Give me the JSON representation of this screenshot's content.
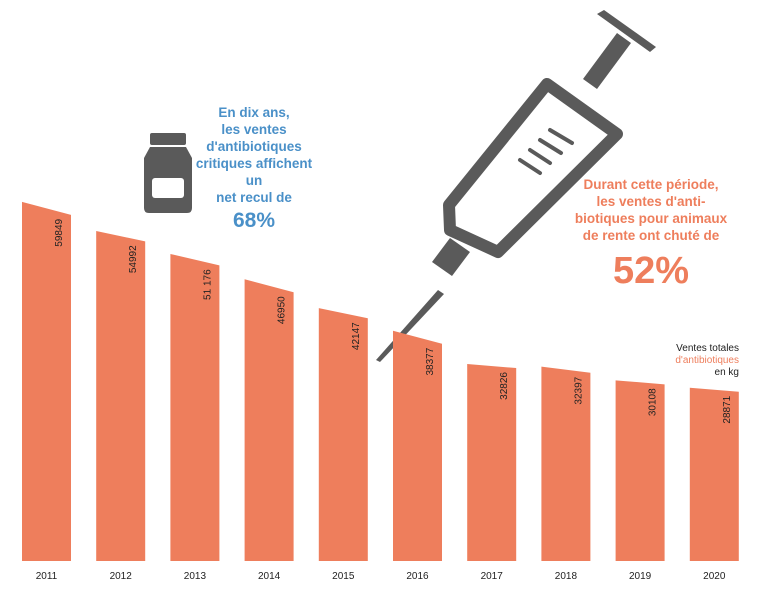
{
  "chart_data": {
    "type": "bar",
    "categories": [
      "2011",
      "2012",
      "2013",
      "2014",
      "2015",
      "2016",
      "2017",
      "2018",
      "2019",
      "2020"
    ],
    "values": [
      59849,
      54992,
      51176,
      46950,
      42147,
      38377,
      32826,
      32397,
      30108,
      28871
    ],
    "value_labels": [
      "59849",
      "54992",
      "51 176",
      "46950",
      "42147",
      "38377",
      "32826",
      "32397",
      "30108",
      "28871"
    ],
    "ylabel": "en kg",
    "ylim": [
      0,
      60000
    ]
  },
  "annotations": {
    "critical": {
      "text": "En dix ans, les ventes d'antibiotiques critiques affichent un net recul de",
      "lines": [
        "En dix ans,",
        "les ventes",
        "d'antibiotiques",
        "critiques affichent un",
        "net recul de"
      ],
      "value": "68%"
    },
    "farm": {
      "text": "Durant cette période, les ventes d'antibiotiques pour animaux de rente ont chuté de",
      "lines": [
        "Durant cette période,",
        "les ventes d'anti-",
        "biotiques pour animaux",
        "de rente ont chuté de"
      ],
      "value": "52%"
    }
  },
  "legend": {
    "line1": "Ventes totales",
    "line2": "d'antibiotiques",
    "line3": "en kg"
  },
  "colors": {
    "bar": "#ee7e5c",
    "blue": "#4a90c8",
    "icon": "#5a5a5a"
  },
  "icons": {
    "bottle": "medicine-bottle-icon",
    "syringe": "syringe-icon"
  }
}
